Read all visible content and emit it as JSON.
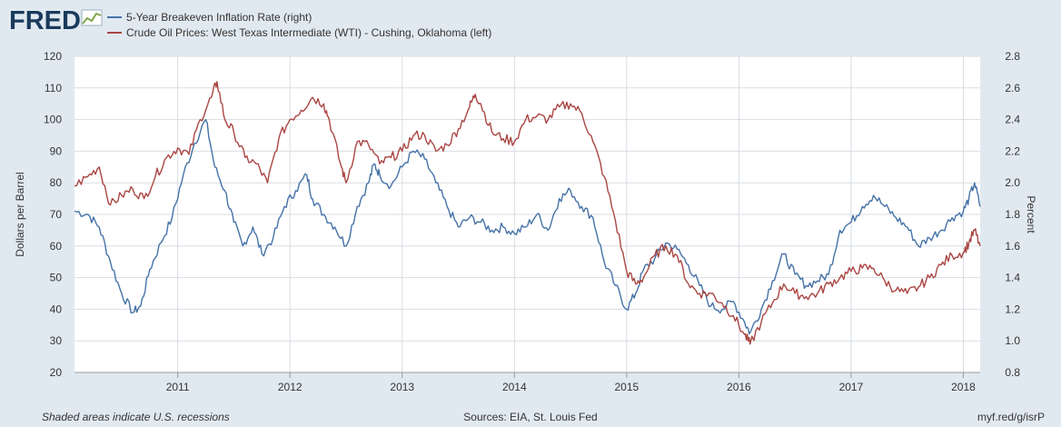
{
  "logo": {
    "text": "FRED",
    "icon": "chart-line-icon"
  },
  "footer": {
    "left": "Shaded areas indicate U.S. recessions",
    "center": "Sources: EIA, St. Louis Fed",
    "right": "myf.red/g/isrP"
  },
  "colors": {
    "blue": "#4572a7",
    "red": "#aa4643",
    "background": "#e1e9f0",
    "plot": "#ffffff",
    "grid": "#d8dde3"
  },
  "chart_data": {
    "type": "line",
    "title": "",
    "xlabel": "",
    "ylabel_left": "Dollars per Barrel",
    "ylabel_right": "Percent",
    "ylim_left": [
      20,
      120
    ],
    "ylim_right": [
      0.8,
      2.8
    ],
    "xlim": [
      2010.08,
      2018.15
    ],
    "yticks_left": [
      "20",
      "30",
      "40",
      "50",
      "60",
      "70",
      "80",
      "90",
      "100",
      "110",
      "120"
    ],
    "yticks_right": [
      "0.8",
      "1.0",
      "1.2",
      "1.4",
      "1.6",
      "1.8",
      "2.0",
      "2.2",
      "2.4",
      "2.6",
      "2.8"
    ],
    "xticks": [
      "2011",
      "2012",
      "2013",
      "2014",
      "2015",
      "2016",
      "2017",
      "2018"
    ],
    "grid": true,
    "legend_position": "top-left",
    "series": [
      {
        "name": "5-Year Breakeven Inflation Rate (right)",
        "axis": "right",
        "color": "#4572a7",
        "x": [
          2010.08,
          2010.2,
          2010.3,
          2010.4,
          2010.5,
          2010.6,
          2010.67,
          2010.75,
          2010.85,
          2010.95,
          2011.05,
          2011.15,
          2011.25,
          2011.33,
          2011.42,
          2011.5,
          2011.58,
          2011.67,
          2011.75,
          2011.85,
          2011.95,
          2012.05,
          2012.15,
          2012.2,
          2012.3,
          2012.4,
          2012.5,
          2012.6,
          2012.7,
          2012.75,
          2012.8,
          2012.9,
          2013.0,
          2013.1,
          2013.2,
          2013.3,
          2013.4,
          2013.5,
          2013.6,
          2013.7,
          2013.8,
          2013.9,
          2014.0,
          2014.1,
          2014.2,
          2014.3,
          2014.4,
          2014.5,
          2014.6,
          2014.7,
          2014.8,
          2014.9,
          2015.0,
          2015.08,
          2015.15,
          2015.25,
          2015.35,
          2015.45,
          2015.55,
          2015.65,
          2015.75,
          2015.85,
          2015.95,
          2016.05,
          2016.1,
          2016.2,
          2016.3,
          2016.4,
          2016.5,
          2016.6,
          2016.7,
          2016.8,
          2016.9,
          2017.0,
          2017.1,
          2017.2,
          2017.3,
          2017.4,
          2017.5,
          2017.6,
          2017.7,
          2017.8,
          2017.9,
          2018.0,
          2018.05,
          2018.1,
          2018.15
        ],
        "values": [
          1.82,
          1.8,
          1.72,
          1.5,
          1.3,
          1.18,
          1.22,
          1.45,
          1.62,
          1.78,
          2.05,
          2.25,
          2.4,
          2.1,
          1.95,
          1.75,
          1.6,
          1.72,
          1.55,
          1.65,
          1.85,
          1.95,
          2.05,
          1.9,
          1.8,
          1.72,
          1.6,
          1.85,
          2.0,
          2.12,
          2.05,
          1.98,
          2.1,
          2.2,
          2.15,
          2.0,
          1.85,
          1.72,
          1.78,
          1.75,
          1.7,
          1.72,
          1.68,
          1.72,
          1.8,
          1.7,
          1.9,
          1.95,
          1.85,
          1.78,
          1.5,
          1.35,
          1.2,
          1.3,
          1.45,
          1.52,
          1.62,
          1.58,
          1.48,
          1.35,
          1.22,
          1.2,
          1.25,
          1.12,
          1.05,
          1.2,
          1.38,
          1.55,
          1.42,
          1.35,
          1.38,
          1.42,
          1.7,
          1.75,
          1.85,
          1.92,
          1.85,
          1.78,
          1.72,
          1.6,
          1.65,
          1.7,
          1.78,
          1.82,
          1.9,
          2.0,
          1.85
        ]
      },
      {
        "name": "Crude Oil Prices: West Texas Intermediate (WTI) - Cushing, Oklahoma (left)",
        "axis": "left",
        "color": "#aa4643",
        "x": [
          2010.08,
          2010.2,
          2010.3,
          2010.4,
          2010.5,
          2010.6,
          2010.7,
          2010.8,
          2010.9,
          2011.0,
          2011.1,
          2011.2,
          2011.3,
          2011.35,
          2011.42,
          2011.5,
          2011.6,
          2011.7,
          2011.8,
          2011.9,
          2012.0,
          2012.1,
          2012.2,
          2012.3,
          2012.35,
          2012.45,
          2012.5,
          2012.6,
          2012.7,
          2012.8,
          2012.9,
          2013.0,
          2013.1,
          2013.2,
          2013.3,
          2013.4,
          2013.5,
          2013.6,
          2013.65,
          2013.7,
          2013.8,
          2013.9,
          2014.0,
          2014.1,
          2014.2,
          2014.3,
          2014.4,
          2014.5,
          2014.6,
          2014.7,
          2014.8,
          2014.9,
          2015.0,
          2015.08,
          2015.15,
          2015.25,
          2015.35,
          2015.45,
          2015.55,
          2015.65,
          2015.75,
          2015.85,
          2015.95,
          2016.05,
          2016.1,
          2016.2,
          2016.3,
          2016.4,
          2016.5,
          2016.6,
          2016.7,
          2016.8,
          2016.9,
          2017.0,
          2017.1,
          2017.2,
          2017.3,
          2017.4,
          2017.5,
          2017.6,
          2017.7,
          2017.8,
          2017.9,
          2018.0,
          2018.05,
          2018.1,
          2018.15
        ],
        "values": [
          79,
          82,
          85,
          73,
          76,
          78,
          75,
          82,
          88,
          91,
          89,
          100,
          107,
          112,
          100,
          96,
          88,
          86,
          80,
          94,
          100,
          103,
          107,
          105,
          100,
          86,
          80,
          93,
          92,
          86,
          88,
          90,
          95,
          95,
          90,
          92,
          97,
          104,
          108,
          105,
          96,
          94,
          93,
          100,
          101,
          100,
          104,
          105,
          102,
          93,
          82,
          68,
          52,
          48,
          50,
          57,
          60,
          57,
          48,
          45,
          45,
          42,
          38,
          32,
          29,
          36,
          42,
          48,
          45,
          44,
          45,
          48,
          50,
          52,
          53,
          53,
          49,
          46,
          45,
          47,
          50,
          54,
          57,
          58,
          61,
          65,
          60
        ]
      }
    ]
  }
}
